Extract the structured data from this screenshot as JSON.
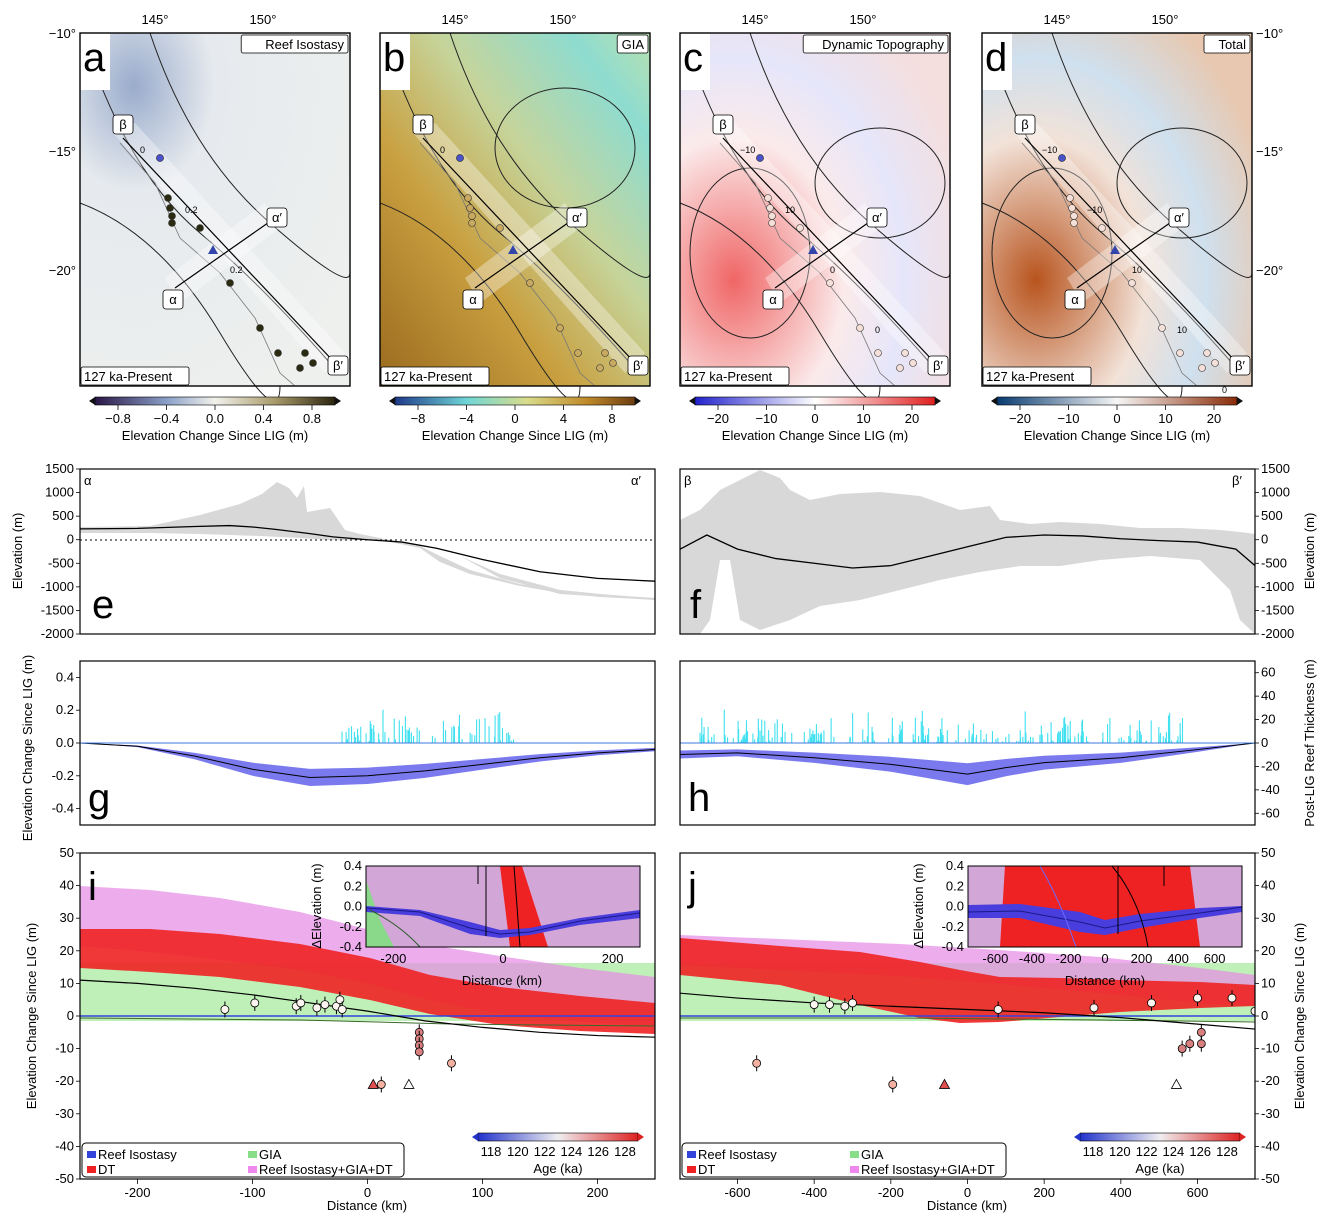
{
  "maps": {
    "top_lon_ticks": [
      "145°",
      "150°"
    ],
    "lat_ticks": [
      "−10°",
      "−15°",
      "−20°"
    ],
    "time_label": "127 ka-Present",
    "colorbar_label": "Elevation Change Since LIG (m)",
    "profile_labels": {
      "alpha": "α",
      "alpha_prime": "α′",
      "beta": "β",
      "beta_prime": "β′"
    },
    "panels": [
      {
        "letter": "a",
        "title": "Reef Isostasy",
        "colorbar_ticks": [
          "−0.8",
          "−0.4",
          "0.0",
          "0.4",
          "0.8"
        ],
        "contour_labels": [
          "0",
          "0.2",
          "0.2"
        ]
      },
      {
        "letter": "b",
        "title": "GIA",
        "colorbar_ticks": [
          "−8",
          "−4",
          "0",
          "4",
          "8"
        ],
        "contour_labels": [
          "0"
        ]
      },
      {
        "letter": "c",
        "title": "Dynamic Topography",
        "colorbar_ticks": [
          "−20",
          "−10",
          "0",
          "10",
          "20"
        ],
        "contour_labels": [
          "−10",
          "10",
          "0",
          "0"
        ]
      },
      {
        "letter": "d",
        "title": "Total",
        "colorbar_ticks": [
          "−20",
          "−10",
          "0",
          "10",
          "20"
        ],
        "contour_labels": [
          "−10",
          "−10",
          "10",
          "10",
          "0"
        ]
      }
    ]
  },
  "chart_data": [
    {
      "type": "line",
      "panel": "e",
      "corner_left": "α",
      "corner_right": "α′",
      "ylabel": "Elevation (m)",
      "ylim": [
        -2000,
        1500
      ],
      "yticks": [
        "1500",
        "1000",
        "500",
        "0",
        "-500",
        "-1000",
        "-1500",
        "-2000"
      ],
      "xlim": [
        -250,
        250
      ],
      "x": [
        -250,
        -200,
        -150,
        -120,
        -100,
        -80,
        -50,
        -30,
        0,
        30,
        60,
        100,
        150,
        200,
        250
      ],
      "series": [
        {
          "values": [
            230,
            240,
            280,
            300,
            270,
            220,
            130,
            60,
            0,
            -50,
            -180,
            -420,
            -680,
            -820,
            -880
          ]
        }
      ]
    },
    {
      "type": "line",
      "panel": "f",
      "corner_left": "β",
      "corner_right": "β′",
      "ylabel": "Elevation (m)",
      "ylim": [
        -2000,
        1500
      ],
      "yticks": [
        "1500",
        "1000",
        "500",
        "0",
        "-500",
        "-1000",
        "-1500",
        "-2000"
      ],
      "xlim": [
        -750,
        750
      ],
      "x": [
        -750,
        -680,
        -600,
        -500,
        -400,
        -300,
        -200,
        -100,
        0,
        100,
        200,
        300,
        400,
        500,
        600,
        700,
        750
      ],
      "series": [
        {
          "values": [
            -200,
            100,
            -200,
            -400,
            -500,
            -600,
            -550,
            -350,
            -150,
            50,
            100,
            80,
            20,
            -20,
            -50,
            -200,
            -550
          ]
        }
      ]
    },
    {
      "type": "area",
      "panel": "g",
      "ylabel": "Elevation Change Since LIG (m)",
      "ylim": [
        -0.5,
        0.5
      ],
      "yticks": [
        "0.4",
        "0.2",
        "0.0",
        "-0.2",
        "-0.4"
      ],
      "xlim": [
        -250,
        250
      ],
      "x": [
        -250,
        -200,
        -150,
        -100,
        -50,
        0,
        50,
        100,
        150,
        200,
        250
      ],
      "series": [
        {
          "values": [
            0.0,
            -0.02,
            -0.08,
            -0.16,
            -0.21,
            -0.2,
            -0.17,
            -0.13,
            -0.09,
            -0.06,
            -0.04
          ]
        }
      ]
    },
    {
      "type": "area",
      "panel": "h",
      "ylabel": "Post-LIG Reef Thickness (m)",
      "ylim": [
        -70,
        70
      ],
      "yticks": [
        "60",
        "40",
        "20",
        "0",
        "-20",
        "-40",
        "-60"
      ],
      "xlim": [
        -750,
        750
      ],
      "x": [
        -750,
        -600,
        -400,
        -200,
        -100,
        0,
        100,
        200,
        400,
        600,
        750
      ],
      "series": [
        {
          "values": [
            -0.07,
            -0.06,
            -0.09,
            -0.13,
            -0.16,
            -0.19,
            -0.15,
            -0.12,
            -0.09,
            -0.04,
            0.0
          ]
        }
      ]
    },
    {
      "type": "line",
      "panel": "i",
      "ylabel": "Elevation Change Since LIG (m)",
      "xlabel": "Distance (km)",
      "xlim": [
        -250,
        250
      ],
      "ylim": [
        -50,
        50
      ],
      "xticks": [
        "-200",
        "-100",
        "0",
        "100",
        "200"
      ],
      "yticks": [
        "50",
        "40",
        "30",
        "20",
        "10",
        "0",
        "-10",
        "-20",
        "-30",
        "-40",
        "-50"
      ],
      "x": [
        -250,
        -200,
        -150,
        -100,
        -50,
        0,
        50,
        100,
        150,
        200,
        250
      ],
      "series": [
        {
          "values": [
            11,
            10,
            8.5,
            6.5,
            4,
            1.5,
            -1.5,
            -3.5,
            -5,
            -6,
            -6.5
          ]
        }
      ],
      "points": [
        [
          -124,
          2
        ],
        [
          -98,
          4
        ],
        [
          -62,
          3
        ],
        [
          -58,
          4
        ],
        [
          -44,
          2.5
        ],
        [
          -37,
          3.5
        ],
        [
          -27,
          3
        ],
        [
          -24,
          5
        ],
        [
          -22,
          2
        ],
        [
          45,
          -5
        ],
        [
          45,
          -7
        ],
        [
          45,
          -9
        ],
        [
          45,
          -11
        ],
        [
          73,
          -14.5
        ],
        [
          12,
          -21
        ]
      ],
      "triangles": [
        [
          5,
          -21
        ],
        [
          36,
          -21
        ]
      ],
      "legend": [
        "Reef Isostasy",
        "DT",
        "GIA",
        "Reef Isostasy+GIA+DT"
      ],
      "colorbar": {
        "label": "Age (ka)",
        "ticks": [
          "118",
          "120",
          "122",
          "124",
          "126",
          "128"
        ]
      },
      "inset": {
        "ylabel": "ΔElevation (m)",
        "xlabel": "Distance (km)",
        "xticks": [
          "-200",
          "0",
          "200"
        ],
        "yticks": [
          "0.4",
          "0.2",
          "0.0",
          "-0.2",
          "-0.4"
        ]
      }
    },
    {
      "type": "line",
      "panel": "j",
      "ylabel": "Elevation Change Since LIG (m)",
      "xlabel": "Distance (km)",
      "xlim": [
        -750,
        750
      ],
      "ylim": [
        -50,
        50
      ],
      "xticks": [
        "-600",
        "-400",
        "-200",
        "0",
        "200",
        "400",
        "600"
      ],
      "yticks": [
        "50",
        "40",
        "30",
        "20",
        "10",
        "0",
        "-10",
        "-20",
        "-30",
        "-40",
        "-50"
      ],
      "x": [
        -750,
        -600,
        -400,
        -200,
        0,
        200,
        400,
        600,
        750
      ],
      "series": [
        {
          "values": [
            7,
            5.5,
            4,
            3,
            2,
            1,
            -0.5,
            -2.5,
            -4
          ]
        }
      ],
      "points": [
        [
          -400,
          3.5
        ],
        [
          -360,
          3.5
        ],
        [
          -320,
          3
        ],
        [
          -300,
          4
        ],
        [
          80,
          2
        ],
        [
          330,
          2.5
        ],
        [
          480,
          4
        ],
        [
          600,
          5.5
        ],
        [
          690,
          5.5
        ],
        [
          750,
          1.5
        ],
        [
          -550,
          -14.5
        ],
        [
          -195,
          -21
        ],
        [
          560,
          -10
        ],
        [
          580,
          -8.5
        ],
        [
          610,
          -5
        ],
        [
          610,
          -8.5
        ]
      ],
      "triangles": [
        [
          -60,
          -21
        ],
        [
          545,
          -21
        ]
      ],
      "legend": [
        "Reef Isostasy",
        "DT",
        "GIA",
        "Reef Isostasy+GIA+DT"
      ],
      "colorbar": {
        "label": "Age (ka)",
        "ticks": [
          "118",
          "120",
          "122",
          "124",
          "126",
          "128"
        ]
      },
      "inset": {
        "ylabel": "ΔElevation (m)",
        "xlabel": "Distance (km)",
        "xticks": [
          "-600",
          "-400",
          "-200",
          "0",
          "200",
          "400",
          "600"
        ],
        "yticks": [
          "0.4",
          "0.2",
          "0.0",
          "-0.2",
          "-0.4"
        ]
      }
    }
  ],
  "colors": {
    "reef": "#3344dd",
    "dt": "#ee2222",
    "gia": "#88dd88",
    "sum": "#ee88ee"
  }
}
